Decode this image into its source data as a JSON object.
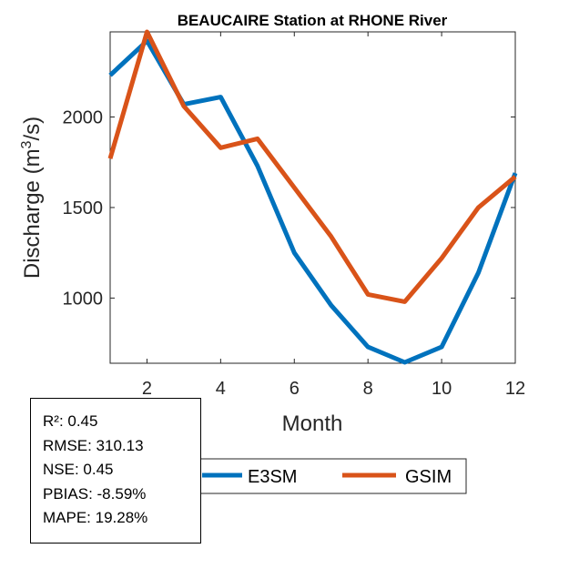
{
  "chart_data": {
    "type": "line",
    "title": "BEAUCAIRE  Station at  RHONE  River",
    "xlabel": "Month",
    "ylabel_main": "Discharge (m",
    "ylabel_sup": "3",
    "ylabel_tail": "/s)",
    "x": [
      1,
      2,
      3,
      4,
      5,
      6,
      7,
      8,
      9,
      10,
      11,
      12
    ],
    "xlim": [
      1,
      12
    ],
    "ylim": [
      640,
      2470
    ],
    "xticks": [
      2,
      4,
      6,
      8,
      10,
      12
    ],
    "yticks": [
      1000,
      1500,
      2000
    ],
    "series": [
      {
        "name": "E3SM",
        "color": "#0072BD",
        "values": [
          2230,
          2420,
          2070,
          2110,
          1730,
          1250,
          960,
          730,
          645,
          730,
          1140,
          1690
        ]
      },
      {
        "name": "GSIM",
        "color": "#D95319",
        "values": [
          1770,
          2470,
          2060,
          1830,
          1880,
          1610,
          1340,
          1020,
          980,
          1220,
          1500,
          1670
        ]
      }
    ],
    "legend_position": "bottom"
  },
  "stats": {
    "r2": "R²: 0.45",
    "rmse": "RMSE: 310.13",
    "nse": "NSE: 0.45",
    "pbias": "PBIAS: -8.59%",
    "mape": "MAPE: 19.28%"
  }
}
